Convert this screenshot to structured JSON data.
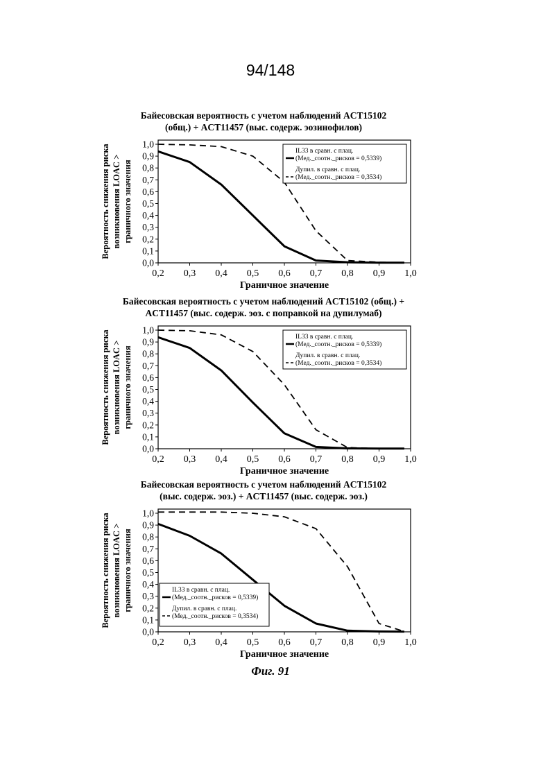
{
  "page": {
    "page_number": "94/148",
    "figure_caption": "Фиг. 91"
  },
  "chart_data": [
    {
      "type": "line",
      "title_lines": [
        "Байесовская вероятность с учетом наблюдений ACT15102",
        "(общ.) + ACT11457 (выс. содерж. эозинофилов)"
      ],
      "xlabel": "Граничное значение",
      "ylabel_lines": [
        "Вероятность снижения риска",
        "возникновения LOAC >",
        "граничного значения"
      ],
      "xlim": [
        0.2,
        1.0
      ],
      "ylim": [
        0.0,
        1.0
      ],
      "x_ticks": [
        "0,2",
        "0,3",
        "0,4",
        "0,5",
        "0,6",
        "0,7",
        "0,8",
        "0,9",
        "1,0"
      ],
      "y_ticks": [
        "0,0",
        "0,1",
        "0,2",
        "0,3",
        "0,4",
        "0,5",
        "0,6",
        "0,7",
        "0,8",
        "0,9",
        "1,0"
      ],
      "grid": false,
      "legend_position": "top-right",
      "series": [
        {
          "name": "IL33 в сравн. с плац.",
          "legend_detail": "(Мед._соотн._рисков = 0,5339)",
          "style": "solid",
          "x": [
            0.2,
            0.3,
            0.4,
            0.5,
            0.6,
            0.7,
            0.8,
            0.9,
            0.98
          ],
          "y": [
            0.94,
            0.85,
            0.66,
            0.4,
            0.14,
            0.02,
            0.005,
            0.002,
            0.001
          ]
        },
        {
          "name": "Дупил. в сравн. с плац.",
          "legend_detail": "(Мед._соотн._рисков = 0,3534)",
          "style": "dashed",
          "x": [
            0.2,
            0.3,
            0.4,
            0.5,
            0.6,
            0.7,
            0.8,
            0.9,
            0.98
          ],
          "y": [
            1.0,
            0.995,
            0.98,
            0.9,
            0.68,
            0.27,
            0.02,
            0.005,
            0.002
          ]
        }
      ]
    },
    {
      "type": "line",
      "title_lines": [
        "Байесовская вероятность с учетом наблюдений ACT15102 (общ.) +",
        "ACT11457 (выс. содерж. эоз. с поправкой на дупилумаб)"
      ],
      "xlabel": "Граничное значение",
      "ylabel_lines": [
        "Вероятность снижения риска",
        "возникновения LOAC >",
        "граничного значения"
      ],
      "xlim": [
        0.2,
        1.0
      ],
      "ylim": [
        0.0,
        1.0
      ],
      "x_ticks": [
        "0,2",
        "0,3",
        "0,4",
        "0,5",
        "0,6",
        "0,7",
        "0,8",
        "0,9",
        "1,0"
      ],
      "y_ticks": [
        "0,0",
        "0,1",
        "0,2",
        "0,3",
        "0,4",
        "0,5",
        "0,6",
        "0,7",
        "0,8",
        "0,9",
        "1,0"
      ],
      "grid": false,
      "legend_position": "top-right",
      "series": [
        {
          "name": "IL33 в сравн. с плац.",
          "legend_detail": "(Мед._соотн._рисков = 0,5339)",
          "style": "solid",
          "x": [
            0.2,
            0.3,
            0.4,
            0.5,
            0.6,
            0.7,
            0.8,
            0.9,
            0.98
          ],
          "y": [
            0.94,
            0.85,
            0.66,
            0.39,
            0.13,
            0.015,
            0.003,
            0.001,
            0.001
          ]
        },
        {
          "name": "Дупил. в сравн. с плац.",
          "legend_detail": "(Мед._соотн._рисков = 0,3534)",
          "style": "dashed",
          "x": [
            0.2,
            0.3,
            0.4,
            0.5,
            0.6,
            0.7,
            0.8,
            0.9,
            0.98
          ],
          "y": [
            1.0,
            0.995,
            0.96,
            0.82,
            0.54,
            0.16,
            0.01,
            0.002,
            0.001
          ]
        }
      ]
    },
    {
      "type": "line",
      "title_lines": [
        "Байесовская вероятность с учетом наблюдений ACT15102",
        "(выс. содерж. эоз.) + ACT11457 (выс. содерж. эоз.)"
      ],
      "xlabel": "Граничное значение",
      "ylabel_lines": [
        "Вероятность снижения риска",
        "возникновения LOAC >",
        "граничного значения"
      ],
      "xlim": [
        0.2,
        1.0
      ],
      "ylim": [
        0.0,
        1.0
      ],
      "x_ticks": [
        "0,2",
        "0,3",
        "0,4",
        "0,5",
        "0,6",
        "0,7",
        "0,8",
        "0,9",
        "1,0"
      ],
      "y_ticks": [
        "0,0",
        "0,1",
        "0,2",
        "0,3",
        "0,4",
        "0,5",
        "0,6",
        "0,7",
        "0,8",
        "0,9",
        "1,0"
      ],
      "grid": false,
      "legend_position": "bottom-left",
      "series": [
        {
          "name": "IL33 в сравн. с плац.",
          "legend_detail": "(Мед._соотн._рисков = 0,5339)",
          "style": "solid",
          "x": [
            0.2,
            0.3,
            0.4,
            0.5,
            0.6,
            0.7,
            0.8,
            0.9,
            0.98
          ],
          "y": [
            0.91,
            0.81,
            0.66,
            0.44,
            0.22,
            0.07,
            0.01,
            0.003,
            0.002
          ]
        },
        {
          "name": "Дупил. в сравн. с плац.",
          "legend_detail": "(Мед._соотн._рисков = 0,3534)",
          "style": "dashed",
          "x": [
            0.2,
            0.3,
            0.4,
            0.5,
            0.6,
            0.7,
            0.8,
            0.9,
            0.98
          ],
          "y": [
            1.01,
            1.01,
            1.01,
            1.0,
            0.97,
            0.87,
            0.55,
            0.07,
            0.003
          ]
        }
      ]
    }
  ]
}
